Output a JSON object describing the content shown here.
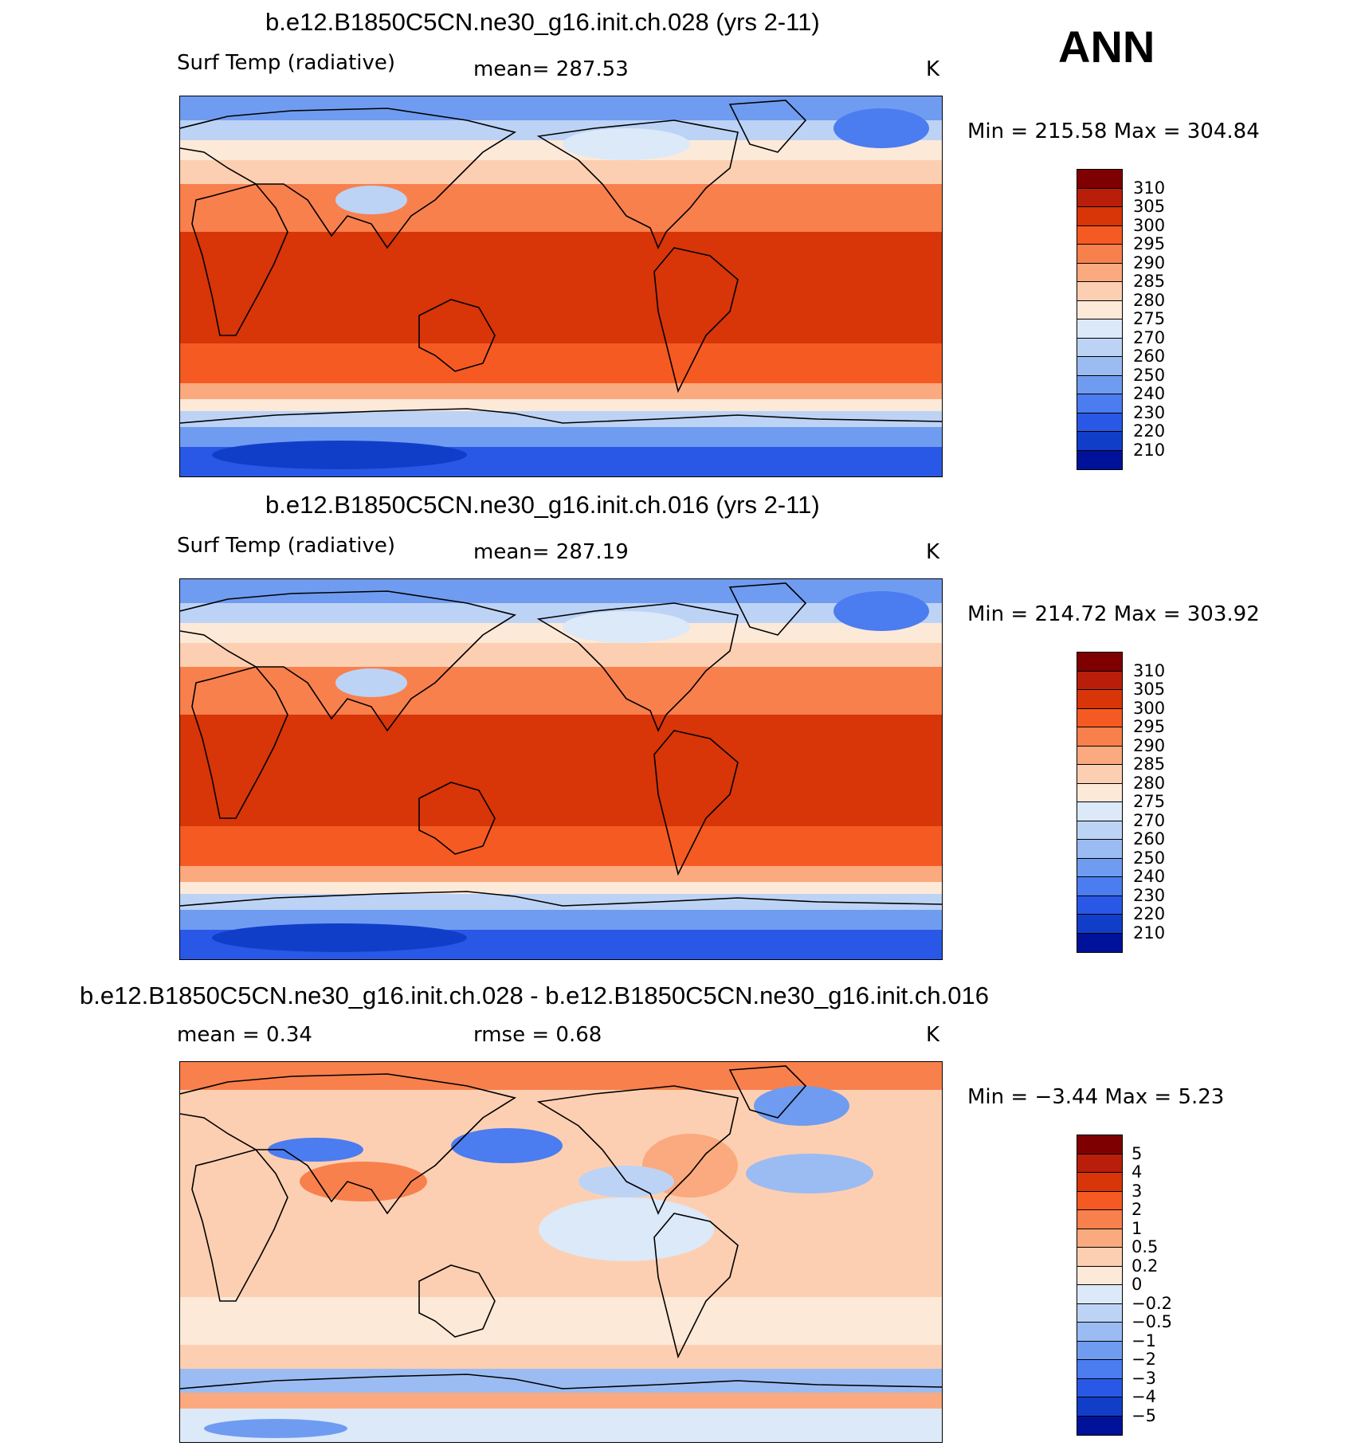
{
  "season": "ANN",
  "units": "K",
  "panels": [
    {
      "title": "b.e12.B1850C5CN.ne30_g16.init.ch.028 (yrs 2-11)",
      "variable": "Surf Temp (radiative)",
      "stat_left": "",
      "stat_mid": "mean=  287.53",
      "range": "Min  =  215.58  Max  =  304.84",
      "levels": [
        "310",
        "305",
        "300",
        "295",
        "290",
        "285",
        "280",
        "275",
        "270",
        "260",
        "250",
        "240",
        "230",
        "220",
        "210"
      ],
      "style": "abs"
    },
    {
      "title": "b.e12.B1850C5CN.ne30_g16.init.ch.016 (yrs 2-11)",
      "variable": "Surf Temp (radiative)",
      "stat_left": "",
      "stat_mid": "mean=  287.19",
      "range": "Min  =  214.72  Max  =  303.92",
      "levels": [
        "310",
        "305",
        "300",
        "295",
        "290",
        "285",
        "280",
        "275",
        "270",
        "260",
        "250",
        "240",
        "230",
        "220",
        "210"
      ],
      "style": "abs"
    },
    {
      "title": "b.e12.B1850C5CN.ne30_g16.init.ch.028 - b.e12.B1850C5CN.ne30_g16.init.ch.016",
      "variable": "",
      "stat_left": "mean  =     0.34",
      "stat_mid": "rmse  =     0.68",
      "range": "Min  =    −3.44  Max  =     5.23",
      "levels": [
        "5",
        "4",
        "3",
        "2",
        "1",
        "0.5",
        "0.2",
        "0",
        "−0.2",
        "−0.5",
        "−1",
        "−2",
        "−3",
        "−4",
        "−5"
      ],
      "style": "diff"
    }
  ],
  "colorbar_colors": [
    "#7f0000",
    "#b81e0a",
    "#d83508",
    "#f55a22",
    "#f8804d",
    "#fba97e",
    "#fdcfb2",
    "#fde9d8",
    "#dbe9f9",
    "#bdd3f5",
    "#9bbcf2",
    "#6f9cf0",
    "#4b7cf0",
    "#2a58e6",
    "#113ec9",
    "#00129a"
  ],
  "land_color": "#000000"
}
